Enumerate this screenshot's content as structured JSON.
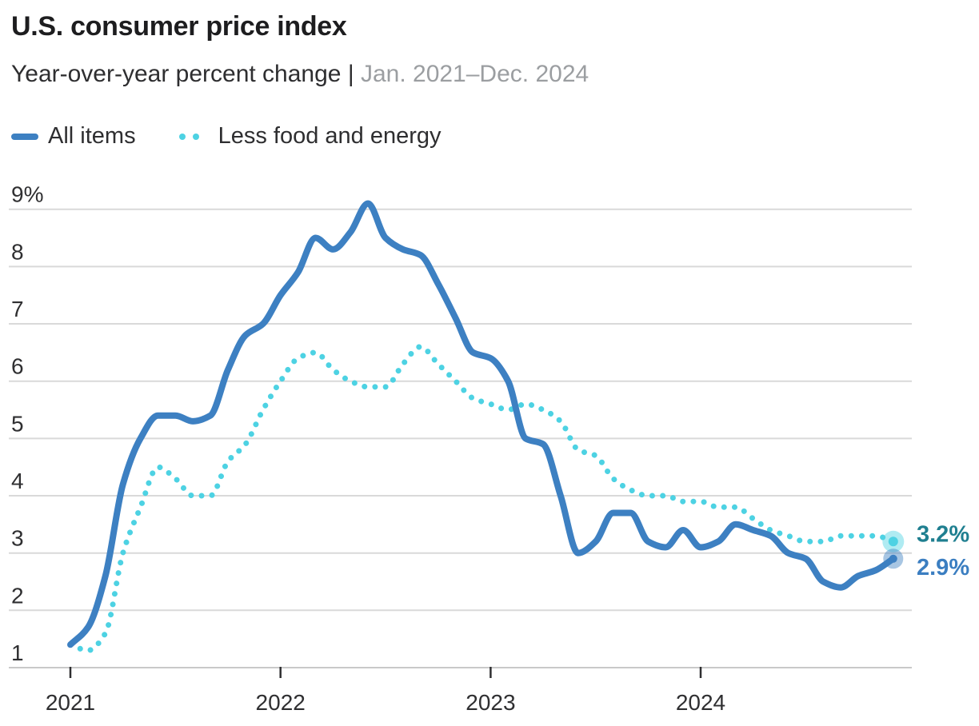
{
  "header": {
    "title": "U.S. consumer price index",
    "subtitle": "Year-over-year percent change",
    "separator": "|",
    "date_range": "Jan. 2021–Dec. 2024"
  },
  "legend": {
    "items": [
      {
        "label": "All items",
        "color": "#3d80c2",
        "swatch": "solid-line"
      },
      {
        "label": "Less food and energy",
        "color": "#4dd2e3",
        "swatch": "dotted-line"
      }
    ]
  },
  "chart_data": {
    "type": "line",
    "title": "U.S. consumer price index",
    "ylabel": "Year-over-year percent change",
    "x_range_label": "Jan. 2021–Dec. 2024",
    "x_unit": "month",
    "x_tick_labels": [
      "2021",
      "2022",
      "2023",
      "2024"
    ],
    "x_tick_month_index": [
      0,
      12,
      24,
      36
    ],
    "y_tick_labels": [
      "9%",
      "8",
      "7",
      "6",
      "5",
      "4",
      "3",
      "2",
      "1"
    ],
    "y_tick_values": [
      9,
      8,
      7,
      6,
      5,
      4,
      3,
      2,
      1
    ],
    "ylim": [
      1,
      9
    ],
    "grid": "horizontal",
    "legend_position": "top-left",
    "series": [
      {
        "name": "All items",
        "style": "solid",
        "color": "#3d80c2",
        "end_label": "2.9%",
        "end_label_color": "#3b7ec1",
        "values": [
          1.4,
          1.7,
          2.6,
          4.2,
          5.0,
          5.4,
          5.4,
          5.3,
          5.4,
          6.2,
          6.8,
          7.0,
          7.5,
          7.9,
          8.5,
          8.3,
          8.6,
          9.1,
          8.5,
          8.3,
          8.2,
          7.7,
          7.1,
          6.5,
          6.4,
          6.0,
          5.0,
          4.9,
          4.0,
          3.0,
          3.2,
          3.7,
          3.7,
          3.2,
          3.1,
          3.4,
          3.1,
          3.2,
          3.5,
          3.4,
          3.3,
          3.0,
          2.9,
          2.5,
          2.4,
          2.6,
          2.7,
          2.9
        ]
      },
      {
        "name": "Less food and energy",
        "style": "dotted",
        "color": "#4dd2e3",
        "end_label": "3.2%",
        "end_label_color": "#1f7f90",
        "values": [
          1.4,
          1.3,
          1.6,
          3.0,
          3.8,
          4.5,
          4.3,
          4.0,
          4.0,
          4.6,
          4.9,
          5.5,
          6.0,
          6.4,
          6.5,
          6.2,
          6.0,
          5.9,
          5.9,
          6.3,
          6.6,
          6.3,
          6.0,
          5.7,
          5.6,
          5.5,
          5.6,
          5.5,
          5.3,
          4.8,
          4.7,
          4.3,
          4.1,
          4.0,
          4.0,
          3.9,
          3.9,
          3.8,
          3.8,
          3.6,
          3.4,
          3.3,
          3.2,
          3.2,
          3.3,
          3.3,
          3.3,
          3.2
        ]
      }
    ]
  }
}
